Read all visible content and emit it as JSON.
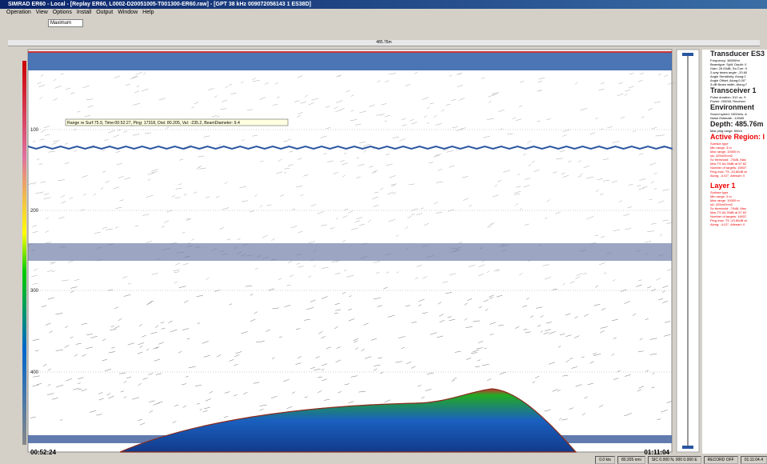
{
  "window": {
    "title": "SIMRAD ER60 - Local - [Replay ER60, L0002-D20051005-T001300-ER60.raw] - [GPT 38 kHz 009072056143 1 ES38D]"
  },
  "menu": [
    "Operation",
    "View",
    "Options",
    "Install",
    "Output",
    "Window",
    "Help"
  ],
  "toolbar": {
    "mode": "Maximum"
  },
  "echogram": {
    "range_label": "485.76m",
    "depth_labels": [
      "100",
      "200",
      "300",
      "400"
    ],
    "tooltip": "Range re Surf:75.9, Time:00:52:27, Ping: 17318, Dist: 80.205, Val: -235.2, BeamDiameter: 9.4",
    "start_time": "00:52:24",
    "end_time": "01:11:04"
  },
  "info_panel": {
    "transducer": {
      "heading": "Transducer ES3",
      "lines": [
        "Frequency: 38000Hz",
        "Beamtype: Split, Depth: 0",
        "Gain: 26.00dB, Sa Corr: 0",
        "2-way beam angle: -20.60",
        "Angle Sensitivity, Along:2",
        "Angle Offset, Along:0.00°",
        "3-dB Beam width, Along:7"
      ]
    },
    "transceiver": {
      "heading": "Transceiver 1",
      "lines": [
        "Pulse duration: 512 us, S",
        "Power: 2000W, Receiver"
      ]
    },
    "environment": {
      "heading": "Environment",
      "lines": [
        "Sound speed: 1500m/s, A",
        "Noise Estimate: -120dB"
      ]
    },
    "depth": "Depth: 485.76m",
    "max_ping": "Max ping range: 500m",
    "active_region": {
      "heading": "Active Region: I",
      "lines": [
        "Surface type",
        "Min range: 3 m",
        "Max range: 10000 m",
        "sA: 425m2/nm2",
        "Sv threshold: -70dB, Max",
        "Max TS 64.39dB at 57.62",
        "Number of targets: 16937",
        "Ping max: TS -43.80dB at",
        "Along: -4.02°, Athwart: 0"
      ]
    },
    "layer": {
      "heading": "Layer 1",
      "lines": [
        "Surface type",
        "Min range: 3 m",
        "Max range: 10000 m",
        "sA: 425m2/nm2",
        "Sv threshold: -70dB, Max",
        "Max TS 64.39dB at 57.62",
        "Number of targets: 16937",
        "Ping max: TS -43.80dB at",
        "Along: -4.02°, Athwart: 0"
      ]
    }
  },
  "status_bar": [
    "0.0 kts",
    "80.205 nmi",
    "SIC 0.000 N, 000 0.000 E",
    "RECORD OFF",
    "01:11:04.4"
  ]
}
